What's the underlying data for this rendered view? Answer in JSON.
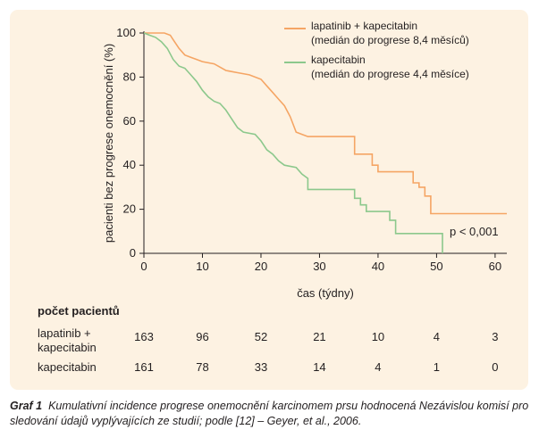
{
  "chart_data": {
    "type": "line",
    "ylabel": "pacienti bez progrese onemocnění (%)",
    "xlabel": "čas (týdny)",
    "xlim": [
      0,
      62
    ],
    "ylim": [
      0,
      100
    ],
    "xticks": [
      0,
      10,
      20,
      30,
      40,
      50,
      60
    ],
    "yticks": [
      0,
      20,
      40,
      60,
      80,
      100
    ],
    "annotation": "p < 0,001",
    "legend_position": "top-right",
    "series": [
      {
        "name": "lapatinib + kapecitabin",
        "note": "(medián do progrese 8,4 měsíců)",
        "color": "#f5a564",
        "points": [
          [
            0,
            100
          ],
          [
            3.5,
            100
          ],
          [
            4.5,
            99
          ],
          [
            5,
            97
          ],
          [
            6,
            93
          ],
          [
            7,
            90
          ],
          [
            8,
            89
          ],
          [
            9,
            88
          ],
          [
            10,
            87
          ],
          [
            12,
            86
          ],
          [
            14,
            83
          ],
          [
            16,
            82
          ],
          [
            18,
            81
          ],
          [
            20,
            79
          ],
          [
            21,
            76
          ],
          [
            22,
            73
          ],
          [
            23,
            70
          ],
          [
            24,
            67
          ],
          [
            25,
            62
          ],
          [
            26,
            55
          ],
          [
            27,
            54
          ],
          [
            28,
            53
          ],
          [
            36,
            53
          ],
          [
            36,
            45
          ],
          [
            39,
            45
          ],
          [
            39,
            40
          ],
          [
            40,
            40
          ],
          [
            40,
            37
          ],
          [
            46,
            37
          ],
          [
            46,
            32
          ],
          [
            47,
            32
          ],
          [
            47,
            30
          ],
          [
            48,
            30
          ],
          [
            48,
            26
          ],
          [
            49,
            26
          ],
          [
            49,
            18
          ],
          [
            62,
            18
          ]
        ]
      },
      {
        "name": "kapecitabin",
        "note": "(medián do progrese 4,4 měsíce)",
        "color": "#8cc88c",
        "points": [
          [
            0,
            100
          ],
          [
            1,
            99
          ],
          [
            2,
            98
          ],
          [
            3,
            96
          ],
          [
            4,
            93
          ],
          [
            5,
            88
          ],
          [
            6,
            85
          ],
          [
            7,
            84
          ],
          [
            8,
            81
          ],
          [
            9,
            78
          ],
          [
            10,
            74
          ],
          [
            11,
            71
          ],
          [
            12,
            69
          ],
          [
            13,
            68
          ],
          [
            14,
            65
          ],
          [
            15,
            61
          ],
          [
            16,
            57
          ],
          [
            17,
            55
          ],
          [
            19,
            54
          ],
          [
            20,
            51
          ],
          [
            21,
            47
          ],
          [
            22,
            45
          ],
          [
            23,
            42
          ],
          [
            24,
            40
          ],
          [
            26,
            39
          ],
          [
            27,
            36
          ],
          [
            28,
            34
          ],
          [
            28,
            29
          ],
          [
            36,
            29
          ],
          [
            36,
            25
          ],
          [
            37,
            25
          ],
          [
            37,
            22
          ],
          [
            38,
            22
          ],
          [
            38,
            19
          ],
          [
            42,
            19
          ],
          [
            42,
            15
          ],
          [
            43,
            15
          ],
          [
            43,
            9
          ],
          [
            51,
            9
          ],
          [
            51,
            0
          ]
        ]
      }
    ]
  },
  "at_risk": {
    "title": "počet pacientů",
    "timepoints": [
      0,
      10,
      20,
      30,
      40,
      50,
      60
    ],
    "rows": [
      {
        "label_line1": "lapatinib +",
        "label_line2": "kapecitabin",
        "values": [
          "163",
          "96",
          "52",
          "21",
          "10",
          "4",
          "3"
        ]
      },
      {
        "label_line1": "kapecitabin",
        "label_line2": "",
        "values": [
          "161",
          "78",
          "33",
          "14",
          "4",
          "1",
          "0"
        ]
      }
    ]
  },
  "caption": {
    "prefix": "Graf 1",
    "text": "Kumulativní incidence progrese onemocnění karcinomem prsu hodnocená Nezávislou komisí pro sledování údajů vyplývajících ze studií; podle [12] – Geyer, et al., 2006."
  }
}
